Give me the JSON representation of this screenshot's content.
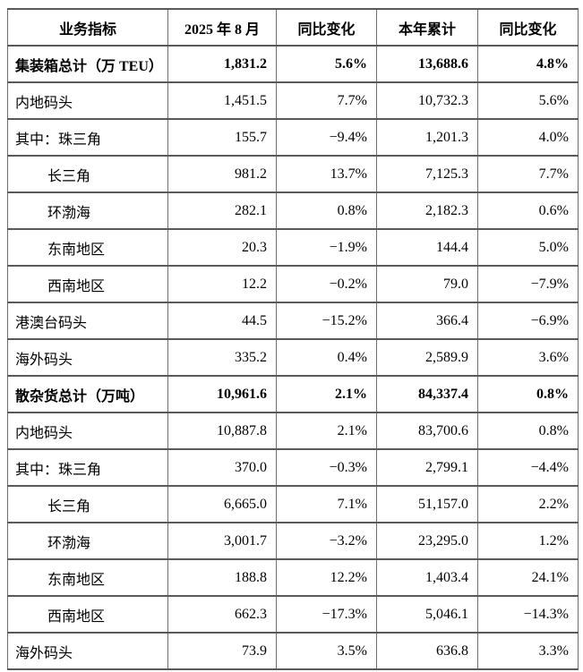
{
  "table": {
    "line_color": "#595959",
    "columns": [
      "业务指标",
      "2025 年 8 月",
      "同比变化",
      "本年累计",
      "同比变化"
    ],
    "rows": [
      {
        "label": "集装箱总计（万 TEU）",
        "indent": 0,
        "bold": true,
        "values": [
          "1,831.2",
          "5.6%",
          "13,688.6",
          "4.8%"
        ]
      },
      {
        "label": "内地码头",
        "indent": 0,
        "bold": false,
        "values": [
          "1,451.5",
          "7.7%",
          "10,732.3",
          "5.6%"
        ]
      },
      {
        "label": "其中：珠三角",
        "indent": 0,
        "bold": false,
        "values": [
          "155.7",
          "−9.4%",
          "1,201.3",
          "4.0%"
        ]
      },
      {
        "label": "长三角",
        "indent": 1,
        "bold": false,
        "values": [
          "981.2",
          "13.7%",
          "7,125.3",
          "7.7%"
        ]
      },
      {
        "label": "环渤海",
        "indent": 1,
        "bold": false,
        "values": [
          "282.1",
          "0.8%",
          "2,182.3",
          "0.6%"
        ]
      },
      {
        "label": "东南地区",
        "indent": 1,
        "bold": false,
        "values": [
          "20.3",
          "−1.9%",
          "144.4",
          "5.0%"
        ]
      },
      {
        "label": "西南地区",
        "indent": 1,
        "bold": false,
        "values": [
          "12.2",
          "−0.2%",
          "79.0",
          "−7.9%"
        ]
      },
      {
        "label": "港澳台码头",
        "indent": 0,
        "bold": false,
        "values": [
          "44.5",
          "−15.2%",
          "366.4",
          "−6.9%"
        ]
      },
      {
        "label": "海外码头",
        "indent": 0,
        "bold": false,
        "values": [
          "335.2",
          "0.4%",
          "2,589.9",
          "3.6%"
        ]
      },
      {
        "label": "散杂货总计（万吨）",
        "indent": 0,
        "bold": true,
        "values": [
          "10,961.6",
          "2.1%",
          "84,337.4",
          "0.8%"
        ]
      },
      {
        "label": "内地码头",
        "indent": 0,
        "bold": false,
        "values": [
          "10,887.8",
          "2.1%",
          "83,700.6",
          "0.8%"
        ]
      },
      {
        "label": "其中：珠三角",
        "indent": 0,
        "bold": false,
        "values": [
          "370.0",
          "−0.3%",
          "2,799.1",
          "−4.4%"
        ]
      },
      {
        "label": "长三角",
        "indent": 1,
        "bold": false,
        "values": [
          "6,665.0",
          "7.1%",
          "51,157.0",
          "2.2%"
        ]
      },
      {
        "label": "环渤海",
        "indent": 1,
        "bold": false,
        "values": [
          "3,001.7",
          "−3.2%",
          "23,295.0",
          "1.2%"
        ]
      },
      {
        "label": "东南地区",
        "indent": 1,
        "bold": false,
        "values": [
          "188.8",
          "12.2%",
          "1,403.4",
          "24.1%"
        ]
      },
      {
        "label": "西南地区",
        "indent": 1,
        "bold": false,
        "values": [
          "662.3",
          "−17.3%",
          "5,046.1",
          "−14.3%"
        ]
      },
      {
        "label": "海外码头",
        "indent": 0,
        "bold": false,
        "values": [
          "73.9",
          "3.5%",
          "636.8",
          "3.3%"
        ]
      }
    ]
  }
}
